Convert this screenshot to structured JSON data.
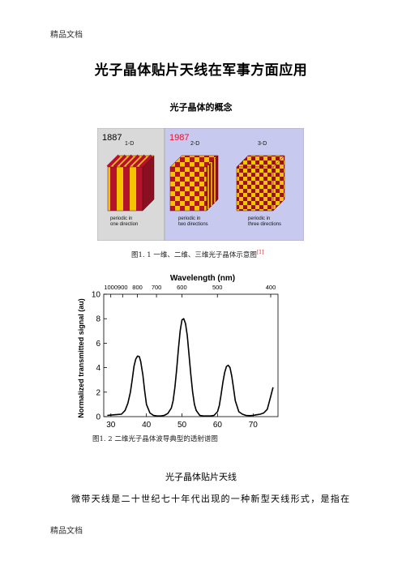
{
  "header": "精品文档",
  "footer": "精品文档",
  "title": "光子晶体贴片天线在军事方面应用",
  "subtitle": "光子晶体的概念",
  "figure1": {
    "year_1d": "1887",
    "year_2d3d": "1987",
    "label_1d": "1-D",
    "label_2d": "2-D",
    "label_3d": "3-D",
    "desc_1d": [
      "periodic in",
      "one direction"
    ],
    "desc_2d": [
      "periodic in",
      "two directions"
    ],
    "desc_3d": [
      "periodic in",
      "three directions"
    ],
    "colors": {
      "red": "#b3132b",
      "yellow": "#f5c400",
      "panel_left": "#d9d9d9",
      "panel_right": "#c8c9ef",
      "year_red": "#e8102a"
    },
    "caption": "图1. 1    一维、二维、三维光子晶体示意图",
    "caption_ref": "[1]"
  },
  "figure2": {
    "caption": "图1. 2    二维光子晶体波导典型的透射谱图",
    "chart_data": {
      "type": "line",
      "title": "Wavelength (nm)",
      "xlabel": "",
      "ylabel": "Normalized transmitted signal (au)",
      "xlim": [
        28,
        77
      ],
      "ylim": [
        0,
        10
      ],
      "x_ticks": [
        30,
        40,
        50,
        60,
        70
      ],
      "y_ticks": [
        0,
        2,
        4,
        6,
        8,
        10
      ],
      "top_axis_ticks": [
        {
          "label": "1000",
          "x": 29.98
        },
        {
          "label": "900",
          "x": 33.31
        },
        {
          "label": "800",
          "x": 37.47
        },
        {
          "label": "700",
          "x": 42.83
        },
        {
          "label": "600",
          "x": 49.97
        },
        {
          "label": "500",
          "x": 59.96
        },
        {
          "label": "400",
          "x": 74.95
        }
      ],
      "series": [
        {
          "x": [
            29,
            31,
            33,
            34,
            34.8,
            35.5,
            36,
            36.5,
            37,
            37.5,
            38,
            38.4,
            39,
            39.5,
            40,
            41,
            42,
            43,
            44,
            45,
            46,
            47,
            47.5,
            48,
            48.5,
            49,
            49.5,
            50,
            50.5,
            51,
            51.5,
            52,
            52.5,
            53,
            53.5,
            54,
            55,
            56,
            57,
            58,
            59,
            60,
            60.5,
            61,
            61.5,
            62,
            62.5,
            63,
            63.5,
            64,
            64.5,
            65,
            66,
            67,
            68,
            69,
            70,
            71,
            72,
            73,
            74,
            75,
            75.6
          ],
          "y": [
            0.1,
            0.15,
            0.2,
            0.5,
            1.1,
            2.0,
            3.0,
            4.1,
            4.7,
            4.95,
            4.9,
            4.5,
            3.4,
            2.1,
            1.0,
            0.3,
            0.1,
            0.05,
            0.05,
            0.1,
            0.25,
            0.7,
            1.3,
            2.4,
            3.8,
            5.5,
            7.0,
            7.9,
            8.0,
            7.6,
            6.6,
            5.0,
            3.4,
            2.0,
            1.0,
            0.5,
            0.1,
            0.05,
            0.05,
            0.05,
            0.1,
            0.4,
            0.9,
            1.8,
            2.8,
            3.6,
            4.1,
            4.2,
            4.0,
            3.3,
            2.3,
            1.3,
            0.4,
            0.2,
            0.1,
            0.08,
            0.1,
            0.15,
            0.2,
            0.3,
            0.6,
            1.7,
            2.4
          ]
        }
      ],
      "grid": false
    }
  },
  "section_heading": "光子晶体贴片天线",
  "paragraph": "微带天线是二十世纪七十年代出现的一种新型天线形式，是指在"
}
